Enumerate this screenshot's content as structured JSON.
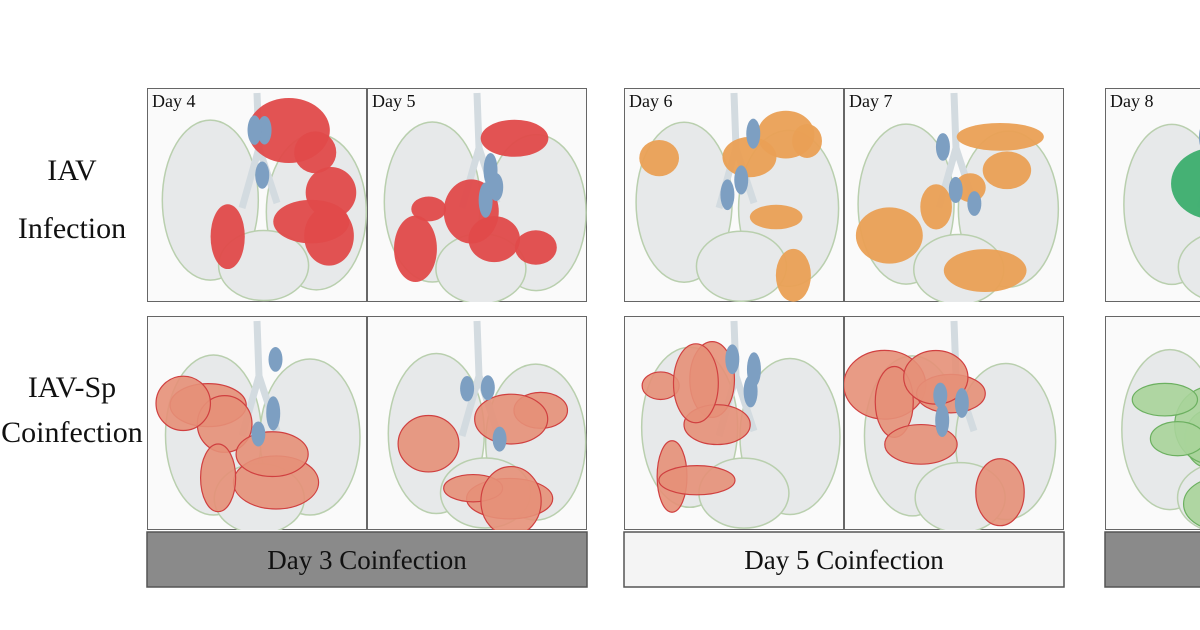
{
  "row_labels": [
    {
      "lines": [
        "IAV",
        "Infection"
      ]
    },
    {
      "lines": [
        "IAV-Sp",
        "Coinfection"
      ]
    }
  ],
  "groups": [
    {
      "label": "Day 3 Coinfection",
      "days": [
        "Day 4",
        "Day 5"
      ]
    },
    {
      "label": "Day 5 Coinfection",
      "days": [
        "Day 6",
        "Day 7"
      ]
    },
    {
      "days": [
        "Day 8"
      ]
    }
  ]
}
